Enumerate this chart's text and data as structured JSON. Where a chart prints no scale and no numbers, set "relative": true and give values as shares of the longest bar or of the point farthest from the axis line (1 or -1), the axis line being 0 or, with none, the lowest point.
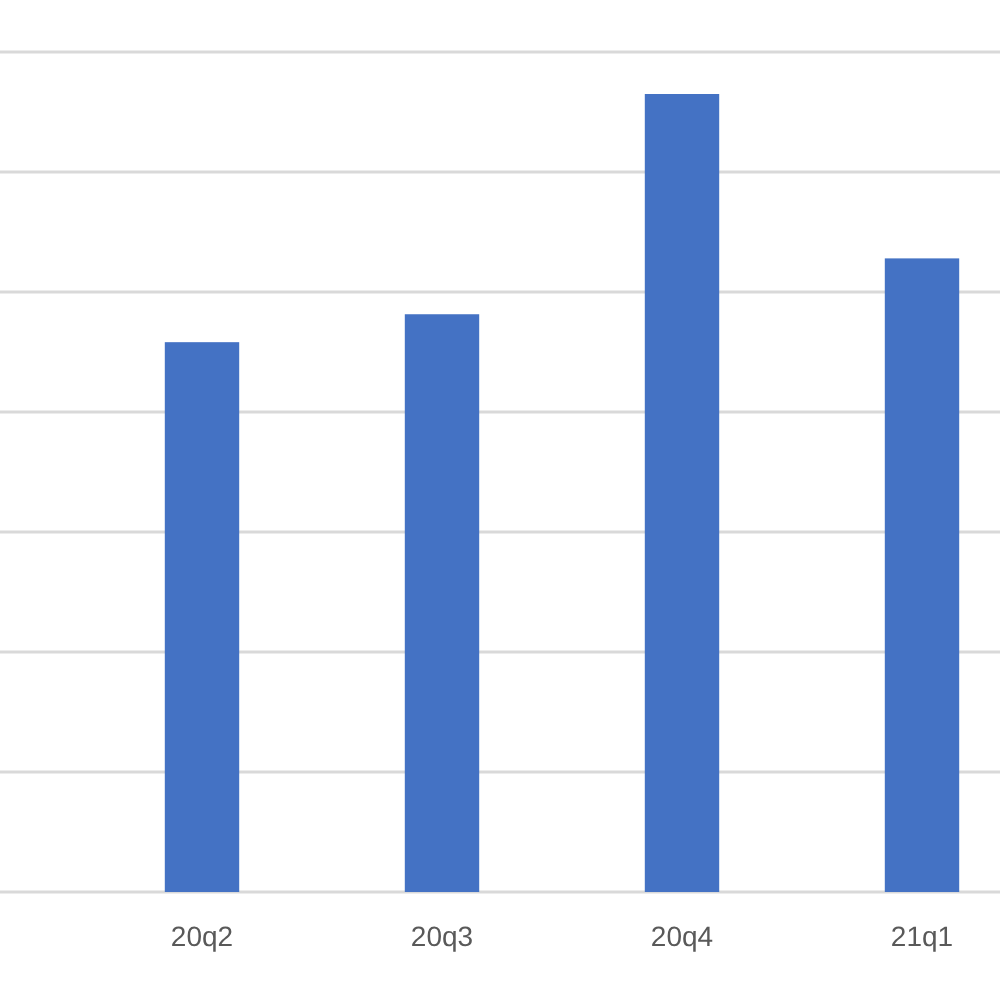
{
  "chart_data": {
    "type": "bar",
    "relative": true,
    "categories": [
      "20q2",
      "20q3",
      "20q4",
      "21q1"
    ],
    "values": [
      0.689,
      0.724,
      1,
      0.794
    ],
    "color": "#4472c4",
    "grid": true
  }
}
